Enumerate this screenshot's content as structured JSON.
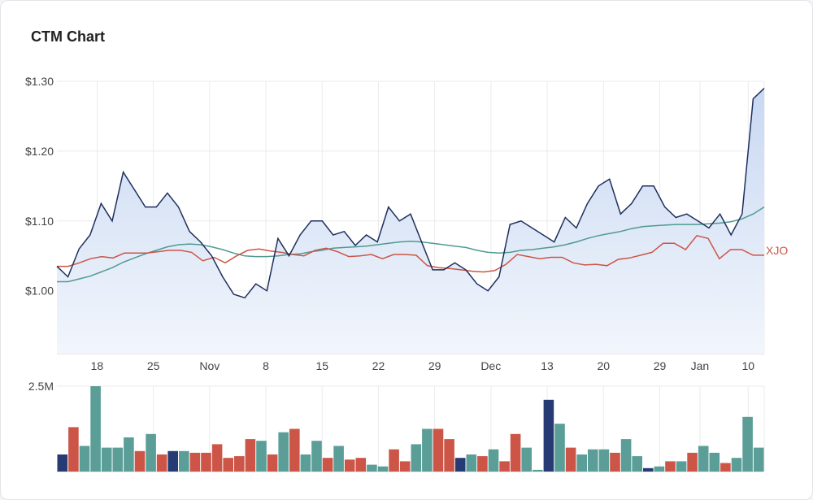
{
  "title": "CTM Chart",
  "colors": {
    "price_line": "#1f2f5c",
    "price_fill_top": "#c8d8f2",
    "price_fill_bottom": "#f2f6fc",
    "moving_average": "#4f9a92",
    "index": "#cc5547",
    "vol_up": "#5a9e97",
    "vol_down": "#cc5547",
    "vol_neutral": "#263a73",
    "grid": "#ebebeb"
  },
  "chart_data": [
    {
      "type": "line",
      "y_ticks": [
        "$1.30",
        "$1.20",
        "$1.10",
        "$1.00"
      ],
      "y_tick_values": [
        1.3,
        1.2,
        1.1,
        1.0
      ],
      "ylim": [
        0.91,
        1.3
      ],
      "x_tick_labels": [
        "18",
        "25",
        "Nov",
        "8",
        "15",
        "22",
        "29",
        "Dec",
        "13",
        "20",
        "29",
        "Jan",
        "10"
      ],
      "x_tick_indices": [
        5,
        12,
        19,
        26,
        33,
        40,
        47,
        54,
        61,
        68,
        75,
        80,
        86
      ],
      "x_count": 89,
      "series": [
        {
          "key": "price",
          "values": [
            1.035,
            1.02,
            1.06,
            1.08,
            1.125,
            1.1,
            1.17,
            1.145,
            1.12,
            1.12,
            1.14,
            1.12,
            1.085,
            1.07,
            1.05,
            1.02,
            0.995,
            0.99,
            1.01,
            1.0,
            1.075,
            1.05,
            1.08,
            1.1,
            1.1,
            1.08,
            1.085,
            1.065,
            1.08,
            1.07,
            1.12,
            1.1,
            1.11,
            1.07,
            1.03,
            1.03,
            1.04,
            1.03,
            1.01,
            1.0,
            1.02,
            1.095,
            1.1,
            1.09,
            1.08,
            1.07,
            1.105,
            1.09,
            1.125,
            1.15,
            1.16,
            1.11,
            1.125,
            1.15,
            1.15,
            1.12,
            1.105,
            1.11,
            1.1,
            1.09,
            1.11,
            1.08,
            1.11,
            1.275,
            1.29
          ]
        },
        {
          "key": "moving_average",
          "values": [
            1.013,
            1.013,
            1.017,
            1.021,
            1.027,
            1.033,
            1.041,
            1.047,
            1.053,
            1.058,
            1.063,
            1.066,
            1.067,
            1.066,
            1.063,
            1.059,
            1.054,
            1.05,
            1.049,
            1.049,
            1.05,
            1.052,
            1.053,
            1.056,
            1.058,
            1.061,
            1.062,
            1.063,
            1.064,
            1.066,
            1.068,
            1.07,
            1.071,
            1.07,
            1.068,
            1.066,
            1.064,
            1.062,
            1.058,
            1.055,
            1.054,
            1.055,
            1.058,
            1.059,
            1.061,
            1.063,
            1.066,
            1.07,
            1.075,
            1.079,
            1.082,
            1.085,
            1.089,
            1.092,
            1.093,
            1.094,
            1.095,
            1.095,
            1.095,
            1.096,
            1.097,
            1.099,
            1.103,
            1.11,
            1.12
          ]
        },
        {
          "key": "index",
          "name": "XJO",
          "values": [
            1.035,
            1.035,
            1.04,
            1.046,
            1.049,
            1.047,
            1.054,
            1.054,
            1.054,
            1.056,
            1.058,
            1.058,
            1.055,
            1.043,
            1.048,
            1.04,
            1.05,
            1.058,
            1.06,
            1.057,
            1.055,
            1.052,
            1.05,
            1.058,
            1.061,
            1.056,
            1.049,
            1.05,
            1.052,
            1.046,
            1.052,
            1.052,
            1.051,
            1.036,
            1.033,
            1.032,
            1.03,
            1.028,
            1.027,
            1.029,
            1.038,
            1.052,
            1.049,
            1.046,
            1.048,
            1.048,
            1.04,
            1.037,
            1.038,
            1.036,
            1.045,
            1.047,
            1.051,
            1.055,
            1.068,
            1.068,
            1.059,
            1.079,
            1.075,
            1.046,
            1.059,
            1.059,
            1.051,
            1.051
          ]
        }
      ]
    },
    {
      "type": "bar",
      "y_ticks": [
        "2.5M"
      ],
      "y_tick_values": [
        2.5
      ],
      "ylim": [
        0,
        2.5
      ],
      "volumes": [
        0.5,
        1.3,
        0.75,
        2.5,
        0.7,
        0.7,
        1.0,
        0.6,
        1.1,
        0.5,
        0.6,
        0.6,
        0.55,
        0.55,
        0.8,
        0.4,
        0.45,
        0.95,
        0.9,
        0.5,
        1.15,
        1.25,
        0.5,
        0.9,
        0.4,
        0.75,
        0.35,
        0.4,
        0.2,
        0.15,
        0.65,
        0.3,
        0.8,
        1.25,
        1.25,
        0.95,
        0.4,
        0.5,
        0.45,
        0.65,
        0.3,
        1.1,
        0.7,
        0.05,
        2.1,
        1.4,
        0.7,
        0.5,
        0.65,
        0.65,
        0.55,
        0.95,
        0.45,
        0.1,
        0.15,
        0.3,
        0.3,
        0.55,
        0.75,
        0.55,
        0.25,
        0.4,
        1.6,
        0.7
      ],
      "colors": [
        "n",
        "d",
        "u",
        "u",
        "u",
        "u",
        "u",
        "d",
        "u",
        "d",
        "n",
        "u",
        "d",
        "d",
        "d",
        "d",
        "d",
        "d",
        "u",
        "d",
        "u",
        "d",
        "u",
        "u",
        "d",
        "u",
        "d",
        "d",
        "u",
        "u",
        "d",
        "d",
        "u",
        "u",
        "d",
        "d",
        "n",
        "u",
        "d",
        "u",
        "d",
        "d",
        "u",
        "u",
        "n",
        "u",
        "d",
        "u",
        "u",
        "u",
        "d",
        "u",
        "u",
        "n",
        "u",
        "d",
        "u",
        "d",
        "u",
        "u",
        "d",
        "u",
        "u",
        "u"
      ]
    }
  ]
}
